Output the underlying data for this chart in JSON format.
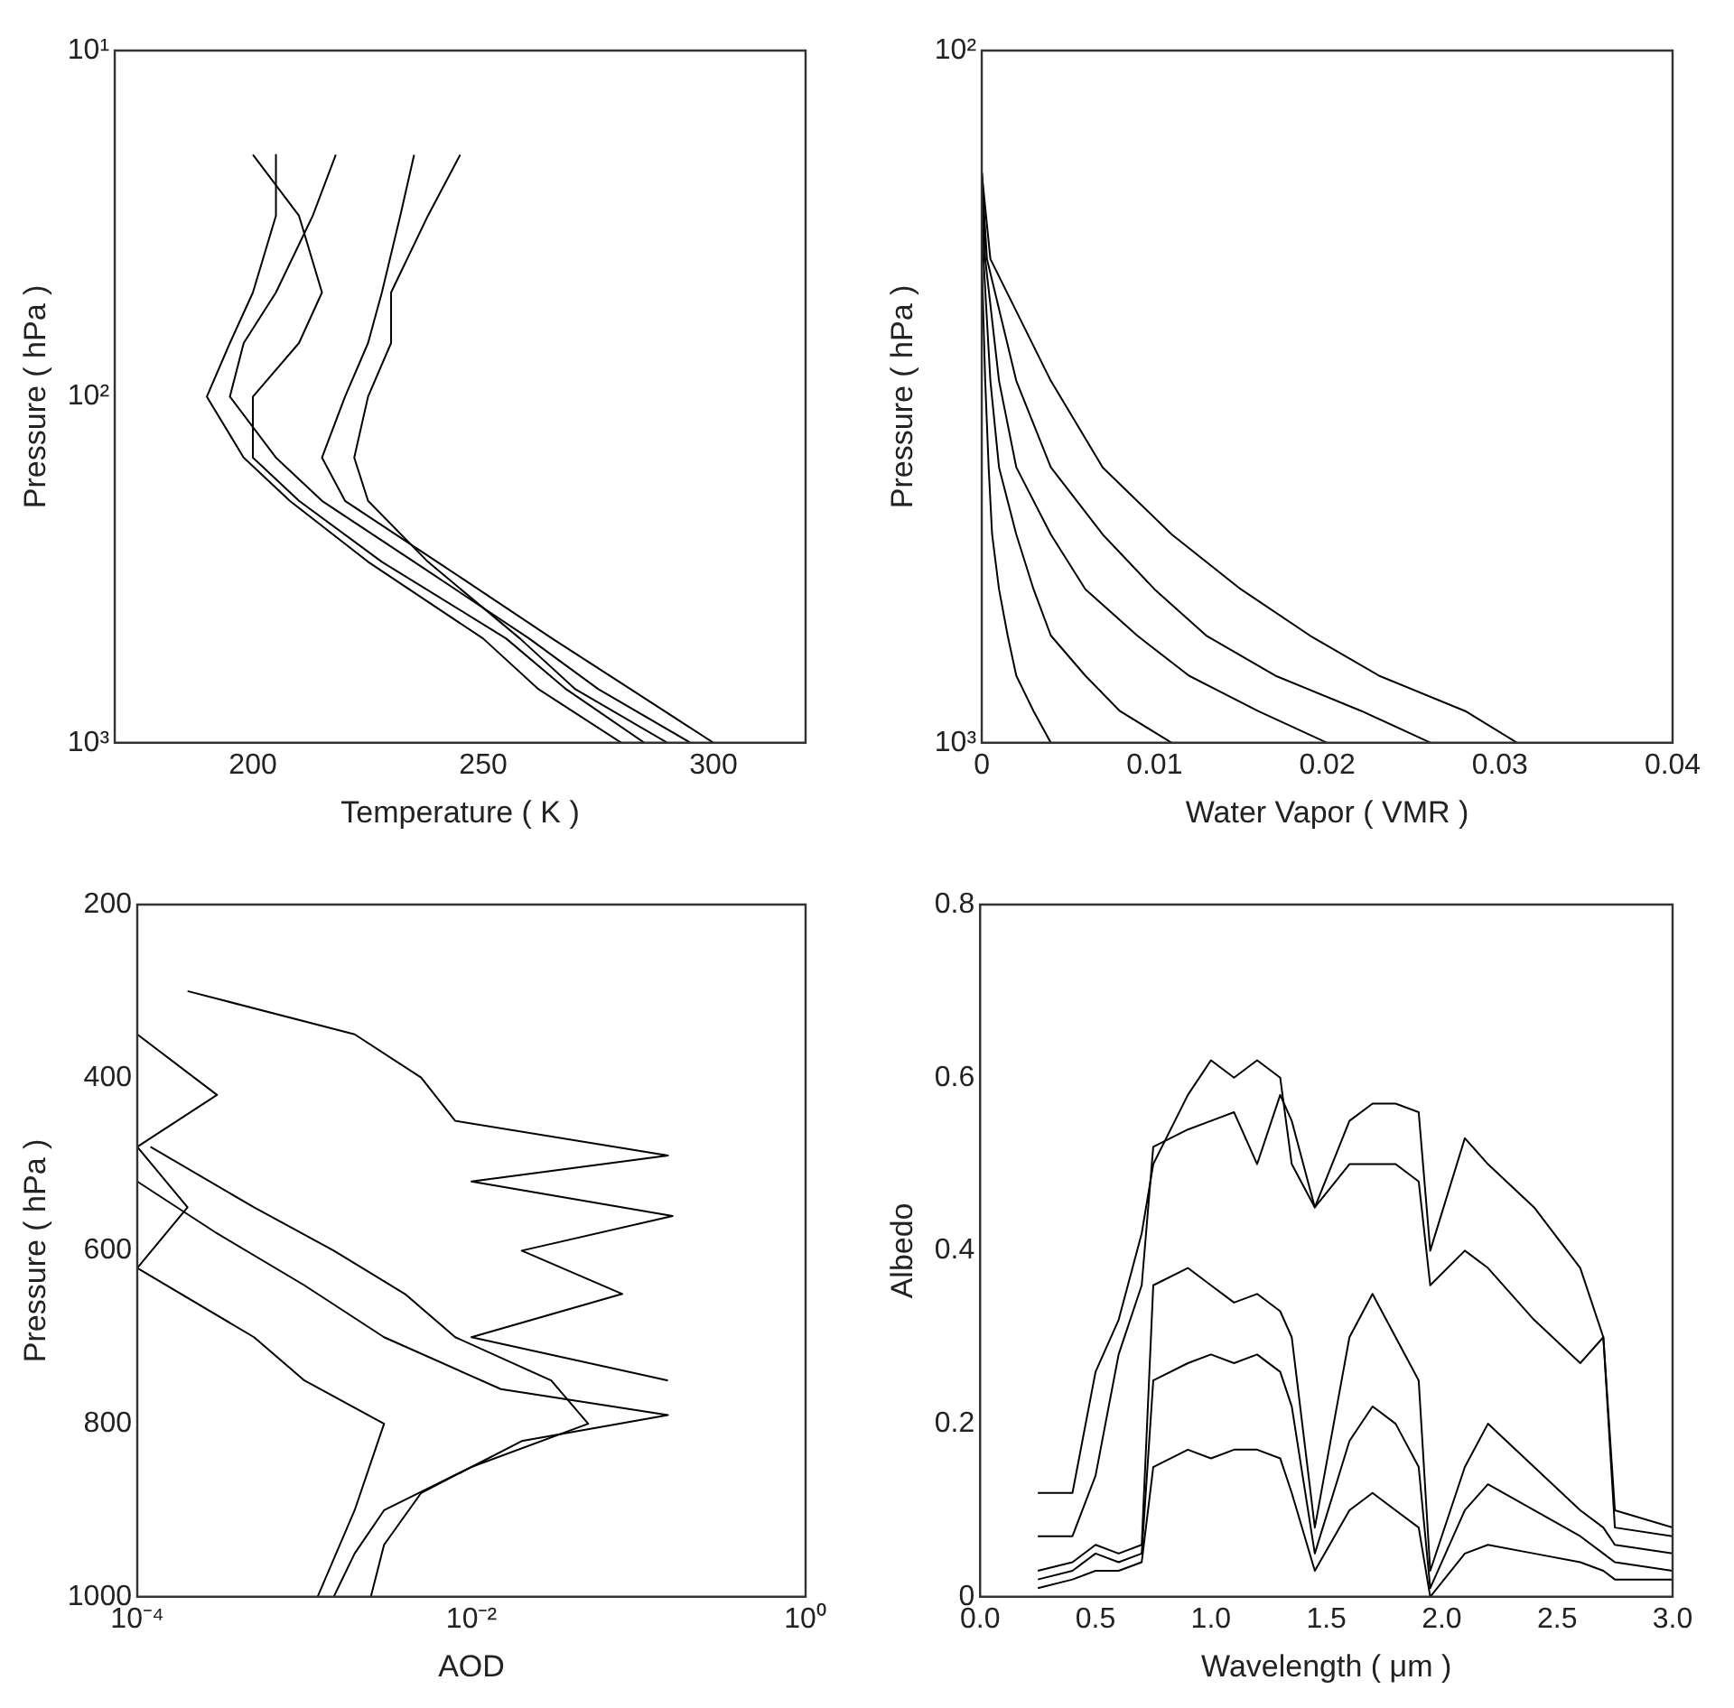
{
  "chart_data": [
    {
      "type": "line",
      "xlabel": "Temperature ( K )",
      "ylabel": "Pressure ( hPa )",
      "xlim": [
        170,
        320
      ],
      "xticks": [
        200,
        250,
        300
      ],
      "ylim": [
        1000,
        10
      ],
      "yticks": [
        {
          "value": 10,
          "label": "10¹"
        },
        {
          "value": 100,
          "label": "10²"
        },
        {
          "value": 1000,
          "label": "10³"
        }
      ],
      "log": "y",
      "marker": "none",
      "series": [
        {
          "color": "#000000",
          "x": [
            218,
            213,
            205,
            198,
            195,
            205,
            215,
            235,
            260,
            275,
            295
          ],
          "values": [
            20,
            30,
            50,
            70,
            100,
            150,
            200,
            300,
            500,
            700,
            1000
          ]
        },
        {
          "color": "#000000",
          "x": [
            235,
            232,
            228,
            225,
            220,
            215,
            220,
            240,
            265,
            282,
            300
          ],
          "values": [
            20,
            30,
            50,
            70,
            100,
            150,
            200,
            300,
            500,
            700,
            1000
          ]
        },
        {
          "color": "#000000",
          "x": [
            205,
            205,
            200,
            195,
            190,
            198,
            208,
            225,
            250,
            262,
            280
          ],
          "values": [
            20,
            30,
            50,
            70,
            100,
            150,
            200,
            300,
            500,
            700,
            1000
          ]
        },
        {
          "color": "#000000",
          "x": [
            245,
            238,
            230,
            230,
            225,
            222,
            225,
            238,
            258,
            270,
            290
          ],
          "values": [
            20,
            30,
            50,
            70,
            100,
            150,
            200,
            300,
            500,
            700,
            1000
          ]
        },
        {
          "color": "#000000",
          "x": [
            200,
            210,
            215,
            210,
            200,
            200,
            210,
            228,
            255,
            268,
            285
          ],
          "values": [
            20,
            30,
            50,
            70,
            100,
            150,
            200,
            300,
            500,
            700,
            1000
          ]
        }
      ]
    },
    {
      "type": "line",
      "xlabel": "Water Vapor ( VMR )",
      "ylabel": "Pressure ( hPa )",
      "xlim": [
        0,
        0.04
      ],
      "xticks": [
        0,
        0.01,
        0.02,
        0.03,
        0.04
      ],
      "ylim": [
        1000,
        100
      ],
      "yticks": [
        {
          "value": 100,
          "label": "10²"
        },
        {
          "value": 1000,
          "label": "10³"
        }
      ],
      "log": "y",
      "marker": "none",
      "series": [
        {
          "color": "#000000",
          "x": [
            0,
            0.0005,
            0.004,
            0.007,
            0.011,
            0.015,
            0.019,
            0.023,
            0.028,
            0.031
          ],
          "values": [
            150,
            200,
            300,
            400,
            500,
            600,
            700,
            800,
            900,
            1000
          ]
        },
        {
          "color": "#000000",
          "x": [
            0,
            0.0003,
            0.002,
            0.004,
            0.007,
            0.01,
            0.013,
            0.017,
            0.022,
            0.026
          ],
          "values": [
            150,
            200,
            300,
            400,
            500,
            600,
            700,
            800,
            900,
            1000
          ]
        },
        {
          "color": "#000000",
          "x": [
            0,
            0.0002,
            0.001,
            0.002,
            0.004,
            0.006,
            0.009,
            0.012,
            0.016,
            0.02
          ],
          "values": [
            150,
            200,
            300,
            400,
            500,
            600,
            700,
            800,
            900,
            1000
          ]
        },
        {
          "color": "#000000",
          "x": [
            0,
            0.0001,
            0.0005,
            0.001,
            0.002,
            0.003,
            0.004,
            0.006,
            0.008,
            0.011
          ],
          "values": [
            150,
            200,
            300,
            400,
            500,
            600,
            700,
            800,
            900,
            1000
          ]
        },
        {
          "color": "#000000",
          "x": [
            0,
            0,
            0.0002,
            0.0004,
            0.0006,
            0.001,
            0.0015,
            0.002,
            0.003,
            0.004
          ],
          "values": [
            150,
            200,
            300,
            400,
            500,
            600,
            700,
            800,
            900,
            1000
          ]
        }
      ]
    },
    {
      "type": "line",
      "xlabel": "AOD",
      "ylabel": "Pressure ( hPa )",
      "xlim": [
        0.0001,
        1
      ],
      "xticks": [
        {
          "value": 0.0001,
          "label": "10⁻⁴"
        },
        {
          "value": 0.01,
          "label": "10⁻²"
        },
        {
          "value": 1,
          "label": "10⁰"
        }
      ],
      "ylim": [
        1000,
        200
      ],
      "yticks": [
        200,
        400,
        600,
        800,
        1000
      ],
      "log": "x",
      "marker": "none",
      "series": [
        {
          "color": "#000000",
          "x": [
            0.00012,
            0.0005,
            0.0015,
            0.004,
            0.008,
            0.03,
            0.05,
            0.01,
            0.003,
            0.002,
            0.0015
          ],
          "values": [
            480,
            550,
            600,
            650,
            700,
            750,
            800,
            850,
            900,
            950,
            1000
          ]
        },
        {
          "color": "#000000",
          "x": [
            0.0001,
            0.0003,
            0.001,
            0.003,
            0.015,
            0.15,
            0.02,
            0.005,
            0.003,
            0.0025
          ],
          "values": [
            520,
            580,
            640,
            700,
            760,
            790,
            820,
            880,
            940,
            1000
          ]
        },
        {
          "color": "#000000",
          "x": [
            0.0002,
            0.002,
            0.005,
            0.008,
            0.15,
            0.01,
            0.16,
            0.02,
            0.08,
            0.01,
            0.15
          ],
          "values": [
            300,
            350,
            400,
            450,
            490,
            520,
            560,
            600,
            650,
            700,
            750
          ]
        },
        {
          "color": "#000000",
          "x": [
            0.0001,
            0.0003,
            0.0001,
            0.0002,
            0.0001,
            0.0005,
            0.001,
            0.003,
            0.002,
            0.0012
          ],
          "values": [
            350,
            420,
            480,
            550,
            620,
            700,
            750,
            800,
            900,
            1000
          ]
        }
      ]
    },
    {
      "type": "line",
      "xlabel": "Wavelength ( μm )",
      "ylabel": "Albedo",
      "xlim": [
        0,
        3
      ],
      "xticks": [
        {
          "value": 0,
          "label": "0.0"
        },
        0.5,
        {
          "value": 1,
          "label": "1.0"
        },
        1.5,
        {
          "value": 2,
          "label": "2.0"
        },
        2.5,
        {
          "value": 3,
          "label": "3.0"
        }
      ],
      "ylim": [
        0,
        0.8
      ],
      "yticks": [
        0,
        0.2,
        0.4,
        0.6,
        0.8
      ],
      "marker": "none",
      "series": [
        {
          "color": "#000000",
          "x": [
            0.25,
            0.4,
            0.5,
            0.6,
            0.7,
            0.75,
            0.9,
            1,
            1.1,
            1.2,
            1.3,
            1.35,
            1.45,
            1.6,
            1.7,
            1.8,
            1.9,
            1.95,
            2.1,
            2.2,
            2.4,
            2.6,
            2.7,
            2.75,
            3
          ],
          "values": [
            0.07,
            0.07,
            0.14,
            0.28,
            0.36,
            0.52,
            0.54,
            0.55,
            0.56,
            0.5,
            0.58,
            0.55,
            0.45,
            0.55,
            0.57,
            0.57,
            0.56,
            0.4,
            0.53,
            0.5,
            0.45,
            0.38,
            0.3,
            0.08,
            0.07
          ]
        },
        {
          "color": "#000000",
          "x": [
            0.25,
            0.4,
            0.5,
            0.6,
            0.7,
            0.75,
            0.9,
            1,
            1.1,
            1.2,
            1.3,
            1.35,
            1.45,
            1.6,
            1.7,
            1.8,
            1.9,
            1.95,
            2.1,
            2.2,
            2.4,
            2.6,
            2.7,
            2.75,
            3
          ],
          "values": [
            0.12,
            0.12,
            0.26,
            0.32,
            0.42,
            0.5,
            0.58,
            0.62,
            0.6,
            0.62,
            0.6,
            0.5,
            0.45,
            0.5,
            0.5,
            0.5,
            0.48,
            0.36,
            0.4,
            0.38,
            0.32,
            0.27,
            0.3,
            0.1,
            0.08
          ]
        },
        {
          "color": "#000000",
          "x": [
            0.25,
            0.4,
            0.5,
            0.6,
            0.7,
            0.75,
            0.9,
            1,
            1.1,
            1.2,
            1.3,
            1.35,
            1.45,
            1.6,
            1.7,
            1.8,
            1.9,
            1.95,
            2.1,
            2.2,
            2.4,
            2.6,
            2.7,
            2.75,
            3
          ],
          "values": [
            0.03,
            0.04,
            0.06,
            0.05,
            0.06,
            0.36,
            0.38,
            0.36,
            0.34,
            0.35,
            0.33,
            0.3,
            0.08,
            0.3,
            0.35,
            0.3,
            0.25,
            0.03,
            0.15,
            0.2,
            0.15,
            0.1,
            0.08,
            0.06,
            0.05
          ]
        },
        {
          "color": "#000000",
          "x": [
            0.25,
            0.4,
            0.5,
            0.6,
            0.7,
            0.75,
            0.9,
            1,
            1.1,
            1.2,
            1.3,
            1.35,
            1.45,
            1.6,
            1.7,
            1.8,
            1.9,
            1.95,
            2.1,
            2.2,
            2.4,
            2.6,
            2.7,
            2.75,
            3
          ],
          "values": [
            0.02,
            0.03,
            0.05,
            0.04,
            0.05,
            0.25,
            0.27,
            0.28,
            0.27,
            0.28,
            0.26,
            0.22,
            0.05,
            0.18,
            0.22,
            0.2,
            0.15,
            0.01,
            0.1,
            0.13,
            0.1,
            0.07,
            0.05,
            0.04,
            0.03
          ]
        },
        {
          "color": "#000000",
          "x": [
            0.25,
            0.4,
            0.5,
            0.6,
            0.7,
            0.75,
            0.9,
            1,
            1.1,
            1.2,
            1.3,
            1.35,
            1.45,
            1.6,
            1.7,
            1.8,
            1.9,
            1.95,
            2.1,
            2.2,
            2.4,
            2.6,
            2.7,
            2.75,
            3
          ],
          "values": [
            0.01,
            0.02,
            0.03,
            0.03,
            0.04,
            0.15,
            0.17,
            0.16,
            0.17,
            0.17,
            0.16,
            0.12,
            0.03,
            0.1,
            0.12,
            0.1,
            0.08,
            0,
            0.05,
            0.06,
            0.05,
            0.04,
            0.03,
            0.02,
            0.02
          ]
        }
      ]
    }
  ]
}
